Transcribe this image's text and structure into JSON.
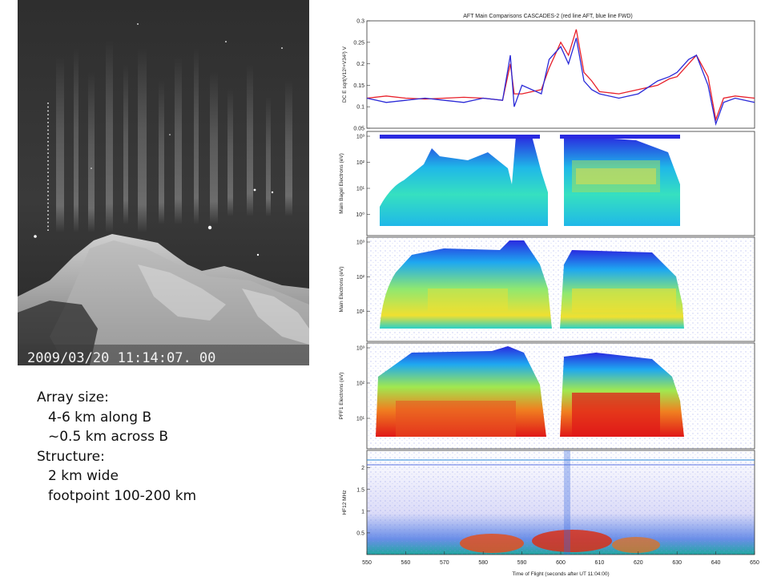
{
  "image": {
    "timestamp": "2009/03/20 11:14:07. 00"
  },
  "notes": {
    "l1": "Array size:",
    "l2": "4-6 km along B",
    "l3": "~0.5 km across B",
    "l4": "Structure:",
    "l5": "2 km wide",
    "l6": "footpoint 100-200 km"
  },
  "chart_data": [
    {
      "type": "line",
      "title": "AFT Main Comparisons CASCADES-2 (red line AFT, blue line FWD)",
      "ylabel": "DC E sqrt(V12²+V34²) V",
      "ylim": [
        0.05,
        0.3
      ],
      "yticks": [
        "0.3",
        "0.25",
        "0.2",
        "0.15",
        "0.1",
        "0.05"
      ],
      "xlim": [
        550,
        650
      ],
      "series": [
        {
          "name": "AFT",
          "color": "#e8202a",
          "x": [
            550,
            555,
            560,
            565,
            570,
            575,
            580,
            585,
            587,
            588,
            590,
            595,
            597,
            600,
            602,
            604,
            606,
            608,
            610,
            615,
            620,
            625,
            628,
            630,
            633,
            635,
            638,
            640,
            642,
            645,
            650
          ],
          "values": [
            0.12,
            0.125,
            0.12,
            0.118,
            0.12,
            0.122,
            0.12,
            0.115,
            0.2,
            0.13,
            0.13,
            0.14,
            0.19,
            0.25,
            0.22,
            0.28,
            0.18,
            0.16,
            0.135,
            0.13,
            0.14,
            0.15,
            0.165,
            0.17,
            0.2,
            0.22,
            0.17,
            0.07,
            0.12,
            0.125,
            0.12
          ]
        },
        {
          "name": "FWD",
          "color": "#2a2ad8",
          "x": [
            550,
            555,
            560,
            565,
            570,
            575,
            580,
            585,
            587,
            588,
            590,
            595,
            597,
            600,
            602,
            604,
            606,
            608,
            610,
            615,
            620,
            625,
            628,
            630,
            633,
            635,
            638,
            640,
            642,
            645,
            650
          ],
          "values": [
            0.12,
            0.11,
            0.115,
            0.12,
            0.115,
            0.11,
            0.12,
            0.115,
            0.22,
            0.1,
            0.15,
            0.13,
            0.21,
            0.24,
            0.2,
            0.26,
            0.16,
            0.14,
            0.13,
            0.12,
            0.13,
            0.16,
            0.17,
            0.18,
            0.21,
            0.22,
            0.15,
            0.06,
            0.11,
            0.12,
            0.11
          ]
        }
      ]
    },
    {
      "type": "heatmap",
      "ylabel": "Main Bagel Electrons (eV)",
      "yticks": [
        "10³",
        "10²",
        "10¹",
        "10⁰"
      ]
    },
    {
      "type": "heatmap",
      "ylabel": "Main Electrons (eV)",
      "yticks": [
        "10³",
        "10²",
        "10¹"
      ]
    },
    {
      "type": "heatmap",
      "ylabel": "PFF1 Electrons (eV)",
      "yticks": [
        "10³",
        "10²",
        "10¹"
      ]
    },
    {
      "type": "heatmap",
      "ylabel": "HF12 MHz",
      "yticks": [
        "2",
        "1.5",
        "1",
        "0.5"
      ],
      "xlabel": "Time of Flight (seconds after UT 11:04:00)",
      "xticks": [
        "550",
        "560",
        "570",
        "580",
        "590",
        "600",
        "610",
        "620",
        "630",
        "640",
        "650"
      ]
    }
  ]
}
